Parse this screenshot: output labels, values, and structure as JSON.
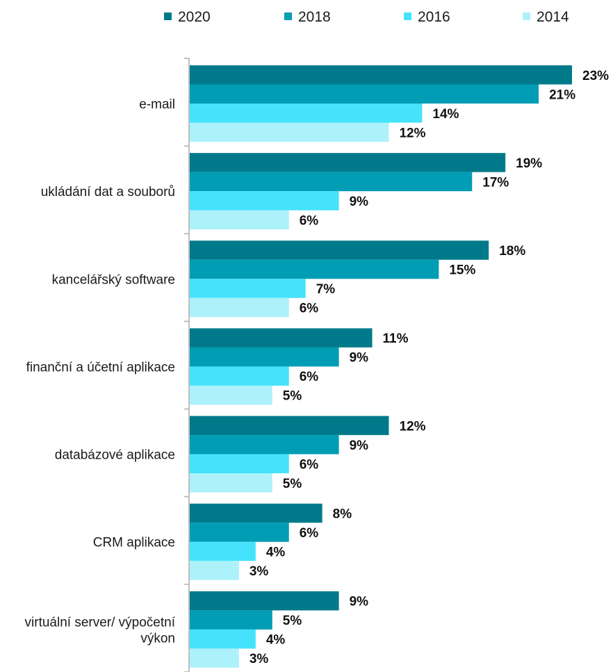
{
  "chart_data": {
    "type": "bar",
    "orientation": "horizontal",
    "categories": [
      "e-mail",
      "ukládání dat a souborů",
      "kancelářský software",
      "finanční a účetní aplikace",
      "databázové aplikace",
      "CRM aplikace",
      "virtuální server/ výpočetní výkon"
    ],
    "category_lines": [
      [
        "e-mail"
      ],
      [
        "ukládání dat a souborů"
      ],
      [
        "kancelářský software"
      ],
      [
        "finanční a účetní aplikace"
      ],
      [
        "databázové aplikace"
      ],
      [
        "CRM aplikace"
      ],
      [
        "virtuální server/ výpočetní",
        "výkon"
      ]
    ],
    "series": [
      {
        "name": "2020",
        "color": "#007a8a",
        "values": [
          23,
          19,
          18,
          11,
          12,
          8,
          9
        ]
      },
      {
        "name": "2018",
        "color": "#009db4",
        "values": [
          21,
          17,
          15,
          9,
          9,
          6,
          5
        ]
      },
      {
        "name": "2016",
        "color": "#44e3fb",
        "values": [
          14,
          9,
          7,
          6,
          6,
          4,
          4
        ]
      },
      {
        "name": "2014",
        "color": "#adf1fb",
        "values": [
          12,
          6,
          6,
          5,
          5,
          3,
          3
        ]
      }
    ],
    "value_suffix": "%",
    "xlim": [
      0,
      25
    ],
    "grid": false,
    "legend_position": "top",
    "axis_color": "#bfbfbf",
    "title": "",
    "xlabel": "",
    "ylabel": ""
  }
}
